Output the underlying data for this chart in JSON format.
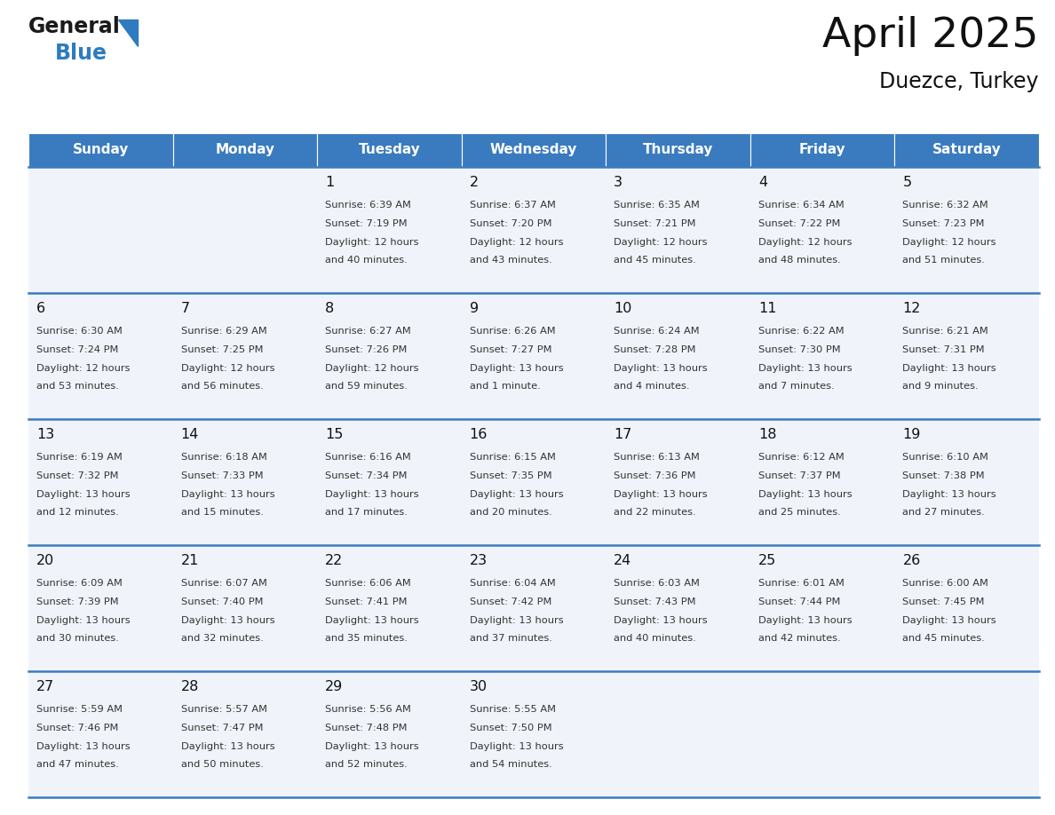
{
  "title": "April 2025",
  "subtitle": "Duezce, Turkey",
  "header_bg": "#3A7BBF",
  "header_text": "#FFFFFF",
  "cell_bg": "#F0F4FA",
  "cell_bg_empty": "#FFFFFF",
  "separator_color": "#3A7BBF",
  "day_names": [
    "Sunday",
    "Monday",
    "Tuesday",
    "Wednesday",
    "Thursday",
    "Friday",
    "Saturday"
  ],
  "weeks": [
    [
      {
        "day": "",
        "info": ""
      },
      {
        "day": "",
        "info": ""
      },
      {
        "day": "1",
        "info": "Sunrise: 6:39 AM\nSunset: 7:19 PM\nDaylight: 12 hours\nand 40 minutes."
      },
      {
        "day": "2",
        "info": "Sunrise: 6:37 AM\nSunset: 7:20 PM\nDaylight: 12 hours\nand 43 minutes."
      },
      {
        "day": "3",
        "info": "Sunrise: 6:35 AM\nSunset: 7:21 PM\nDaylight: 12 hours\nand 45 minutes."
      },
      {
        "day": "4",
        "info": "Sunrise: 6:34 AM\nSunset: 7:22 PM\nDaylight: 12 hours\nand 48 minutes."
      },
      {
        "day": "5",
        "info": "Sunrise: 6:32 AM\nSunset: 7:23 PM\nDaylight: 12 hours\nand 51 minutes."
      }
    ],
    [
      {
        "day": "6",
        "info": "Sunrise: 6:30 AM\nSunset: 7:24 PM\nDaylight: 12 hours\nand 53 minutes."
      },
      {
        "day": "7",
        "info": "Sunrise: 6:29 AM\nSunset: 7:25 PM\nDaylight: 12 hours\nand 56 minutes."
      },
      {
        "day": "8",
        "info": "Sunrise: 6:27 AM\nSunset: 7:26 PM\nDaylight: 12 hours\nand 59 minutes."
      },
      {
        "day": "9",
        "info": "Sunrise: 6:26 AM\nSunset: 7:27 PM\nDaylight: 13 hours\nand 1 minute."
      },
      {
        "day": "10",
        "info": "Sunrise: 6:24 AM\nSunset: 7:28 PM\nDaylight: 13 hours\nand 4 minutes."
      },
      {
        "day": "11",
        "info": "Sunrise: 6:22 AM\nSunset: 7:30 PM\nDaylight: 13 hours\nand 7 minutes."
      },
      {
        "day": "12",
        "info": "Sunrise: 6:21 AM\nSunset: 7:31 PM\nDaylight: 13 hours\nand 9 minutes."
      }
    ],
    [
      {
        "day": "13",
        "info": "Sunrise: 6:19 AM\nSunset: 7:32 PM\nDaylight: 13 hours\nand 12 minutes."
      },
      {
        "day": "14",
        "info": "Sunrise: 6:18 AM\nSunset: 7:33 PM\nDaylight: 13 hours\nand 15 minutes."
      },
      {
        "day": "15",
        "info": "Sunrise: 6:16 AM\nSunset: 7:34 PM\nDaylight: 13 hours\nand 17 minutes."
      },
      {
        "day": "16",
        "info": "Sunrise: 6:15 AM\nSunset: 7:35 PM\nDaylight: 13 hours\nand 20 minutes."
      },
      {
        "day": "17",
        "info": "Sunrise: 6:13 AM\nSunset: 7:36 PM\nDaylight: 13 hours\nand 22 minutes."
      },
      {
        "day": "18",
        "info": "Sunrise: 6:12 AM\nSunset: 7:37 PM\nDaylight: 13 hours\nand 25 minutes."
      },
      {
        "day": "19",
        "info": "Sunrise: 6:10 AM\nSunset: 7:38 PM\nDaylight: 13 hours\nand 27 minutes."
      }
    ],
    [
      {
        "day": "20",
        "info": "Sunrise: 6:09 AM\nSunset: 7:39 PM\nDaylight: 13 hours\nand 30 minutes."
      },
      {
        "day": "21",
        "info": "Sunrise: 6:07 AM\nSunset: 7:40 PM\nDaylight: 13 hours\nand 32 minutes."
      },
      {
        "day": "22",
        "info": "Sunrise: 6:06 AM\nSunset: 7:41 PM\nDaylight: 13 hours\nand 35 minutes."
      },
      {
        "day": "23",
        "info": "Sunrise: 6:04 AM\nSunset: 7:42 PM\nDaylight: 13 hours\nand 37 minutes."
      },
      {
        "day": "24",
        "info": "Sunrise: 6:03 AM\nSunset: 7:43 PM\nDaylight: 13 hours\nand 40 minutes."
      },
      {
        "day": "25",
        "info": "Sunrise: 6:01 AM\nSunset: 7:44 PM\nDaylight: 13 hours\nand 42 minutes."
      },
      {
        "day": "26",
        "info": "Sunrise: 6:00 AM\nSunset: 7:45 PM\nDaylight: 13 hours\nand 45 minutes."
      }
    ],
    [
      {
        "day": "27",
        "info": "Sunrise: 5:59 AM\nSunset: 7:46 PM\nDaylight: 13 hours\nand 47 minutes."
      },
      {
        "day": "28",
        "info": "Sunrise: 5:57 AM\nSunset: 7:47 PM\nDaylight: 13 hours\nand 50 minutes."
      },
      {
        "day": "29",
        "info": "Sunrise: 5:56 AM\nSunset: 7:48 PM\nDaylight: 13 hours\nand 52 minutes."
      },
      {
        "day": "30",
        "info": "Sunrise: 5:55 AM\nSunset: 7:50 PM\nDaylight: 13 hours\nand 54 minutes."
      },
      {
        "day": "",
        "info": ""
      },
      {
        "day": "",
        "info": ""
      },
      {
        "day": "",
        "info": ""
      }
    ]
  ]
}
